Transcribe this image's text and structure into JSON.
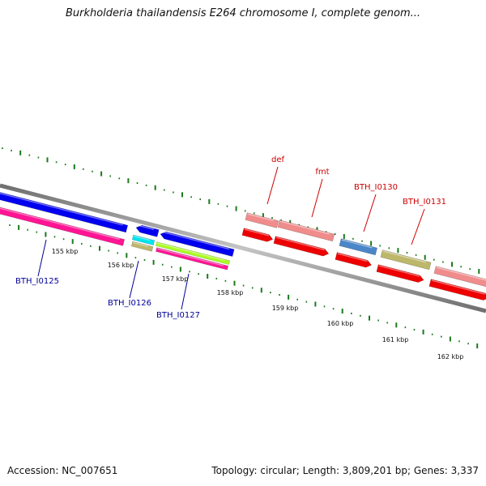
{
  "title": "Burkholderia thailandensis E264 chromosome I, complete genom...",
  "footer": {
    "accession": "Accession: NC_007651",
    "summary": "Topology: circular; Length: 3,809,201 bp; Genes: 3,337"
  },
  "scale": {
    "unit": "kbp",
    "labels": [
      "155 kbp",
      "156 kbp",
      "157 kbp",
      "158 kbp",
      "159 kbp",
      "160 kbp",
      "161 kbp",
      "162 kbp"
    ]
  },
  "gene_labels": {
    "forward": [
      "def",
      "fmt",
      "BTH_I0130",
      "BTH_I0131"
    ],
    "reverse": [
      "BTH_I0125",
      "BTH_I0126",
      "BTH_I0127"
    ]
  },
  "colors": {
    "forward_label": "#cc0000",
    "reverse_label": "#000099",
    "backbone": "#888888",
    "tick": "#1a7a1a",
    "gene_blue": "#0000ee",
    "gene_pink": "#ff1493",
    "gene_salmon": "#f08c8c",
    "gene_red": "#ee0000",
    "gene_steel": "#4a86c8",
    "gene_khaki": "#bdb76b",
    "gene_cyan": "#00e5ee",
    "gene_lime": "#aaff22"
  }
}
